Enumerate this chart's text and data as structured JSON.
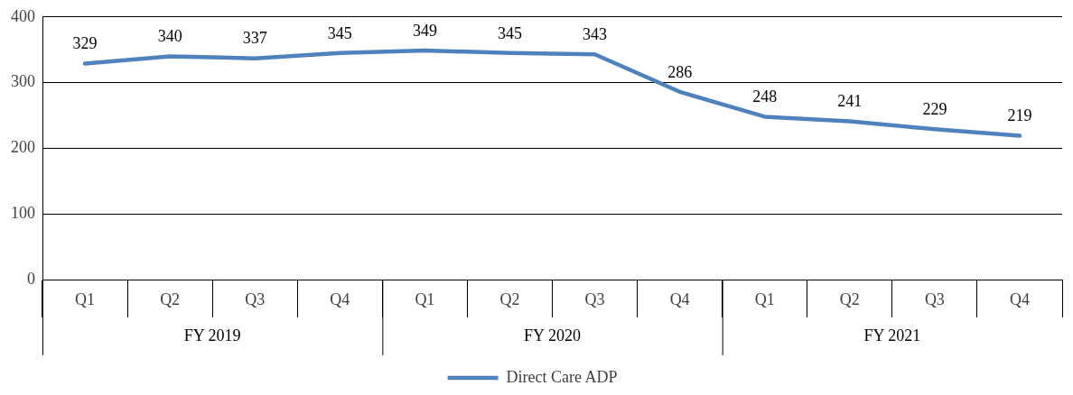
{
  "chart_data": {
    "type": "line",
    "categories": [
      "Q1",
      "Q2",
      "Q3",
      "Q4",
      "Q1",
      "Q2",
      "Q3",
      "Q4",
      "Q1",
      "Q2",
      "Q3",
      "Q4"
    ],
    "annotations": [
      "FY 2019",
      "FY 2020",
      "FY 2021"
    ],
    "series": [
      {
        "name": "Direct Care ADP",
        "color": "#4f81bd",
        "values": [
          329,
          340,
          337,
          345,
          349,
          345,
          343,
          286,
          248,
          241,
          229,
          219
        ]
      }
    ],
    "ylim": [
      0,
      400
    ],
    "yticks": [
      0,
      100,
      200,
      300,
      400
    ],
    "grid": "y",
    "legend": "bottom",
    "data_labels": true,
    "marker": "none",
    "line_style": "solid"
  }
}
